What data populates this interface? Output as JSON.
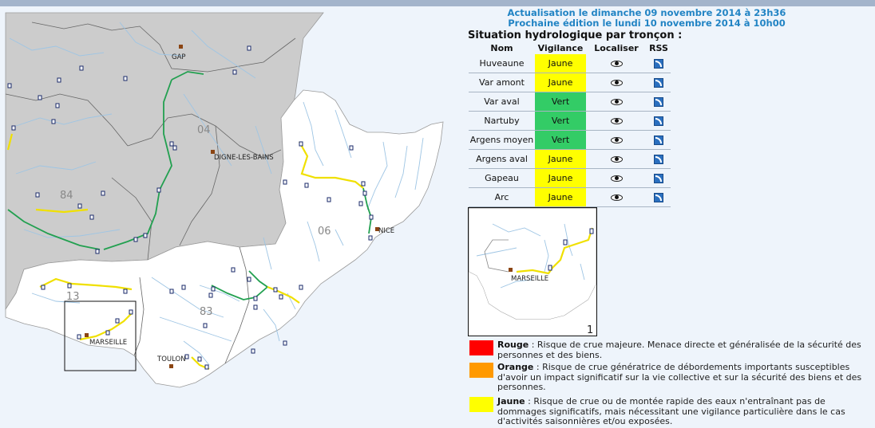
{
  "update": {
    "line1": "Actualisation le dimanche 09 novembre 2014 à 23h36",
    "line2": "Prochaine édition le lundi 10 novembre 2014 à 10h00"
  },
  "situation_title": "Situation hydrologique par tronçon :",
  "table": {
    "headers": [
      "Nom",
      "Vigilance",
      "Localiser",
      "RSS"
    ],
    "rows": [
      {
        "name": "Huveaune",
        "level": "Jaune",
        "color": "#ffff00"
      },
      {
        "name": "Var amont",
        "level": "Jaune",
        "color": "#ffff00"
      },
      {
        "name": "Var aval",
        "level": "Vert",
        "color": "#33cc66"
      },
      {
        "name": "Nartuby",
        "level": "Vert",
        "color": "#33cc66"
      },
      {
        "name": "Argens moyen",
        "level": "Vert",
        "color": "#33cc66"
      },
      {
        "name": "Argens aval",
        "level": "Jaune",
        "color": "#ffff00"
      },
      {
        "name": "Gapeau",
        "level": "Jaune",
        "color": "#ffff00"
      },
      {
        "name": "Arc",
        "level": "Jaune",
        "color": "#ffff00"
      }
    ]
  },
  "map": {
    "cities": {
      "gap": "GAP",
      "digne": "DIGNE-LES-BAINS",
      "nice": "NICE",
      "marseille": "MARSEILLE",
      "toulon": "TOULON"
    },
    "departments": {
      "d04": "04",
      "d84": "84",
      "d06": "06",
      "d13": "13",
      "d83": "83"
    }
  },
  "inset": {
    "city": "MARSEILLE",
    "number": "1"
  },
  "legend": [
    {
      "key": "rouge",
      "label": "Rouge",
      "color": "#ff0000",
      "text": " : Risque de crue majeure. Menace directe et généralisée de la sécurité des personnes et des biens."
    },
    {
      "key": "orange",
      "label": "Orange",
      "color": "#ff9900",
      "text": " : Risque de crue génératrice de débordements importants susceptibles d'avoir un impact significatif sur la vie collective et sur la sécurité des biens et des personnes."
    },
    {
      "key": "jaune",
      "label": "Jaune",
      "color": "#ffff00",
      "text": " : Risque de crue ou de montée rapide des eaux n'entraînant pas de dommages significatifs, mais nécessitant une vigilance particulière dans le cas d'activités saisonnières et/ou exposées."
    }
  ]
}
